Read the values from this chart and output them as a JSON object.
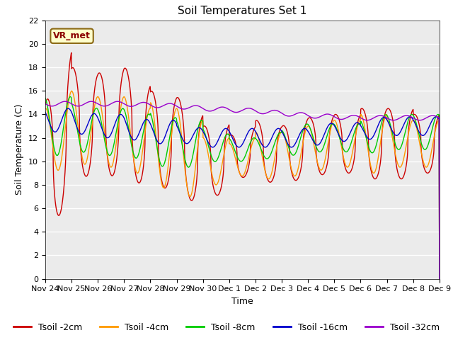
{
  "title": "Soil Temperatures Set 1",
  "xlabel": "Time",
  "ylabel": "Soil Temperature (C)",
  "annotation": "VR_met",
  "ylim": [
    0,
    22
  ],
  "yticks": [
    0,
    2,
    4,
    6,
    8,
    10,
    12,
    14,
    16,
    18,
    20,
    22
  ],
  "xtick_labels": [
    "Nov 24",
    "Nov 25",
    "Nov 26",
    "Nov 27",
    "Nov 28",
    "Nov 29",
    "Nov 30",
    "Dec 1",
    "Dec 2",
    "Dec 3",
    "Dec 4",
    "Dec 5",
    "Dec 6",
    "Dec 7",
    "Dec 8",
    "Dec 9"
  ],
  "series_labels": [
    "Tsoil -2cm",
    "Tsoil -4cm",
    "Tsoil -8cm",
    "Tsoil -16cm",
    "Tsoil -32cm"
  ],
  "series_colors": [
    "#cc0000",
    "#ff9900",
    "#00cc00",
    "#0000cc",
    "#9900cc"
  ],
  "fig_facecolor": "#ffffff",
  "ax_facecolor": "#ebebeb",
  "title_fontsize": 11,
  "axis_label_fontsize": 9,
  "tick_fontsize": 8,
  "legend_fontsize": 9
}
